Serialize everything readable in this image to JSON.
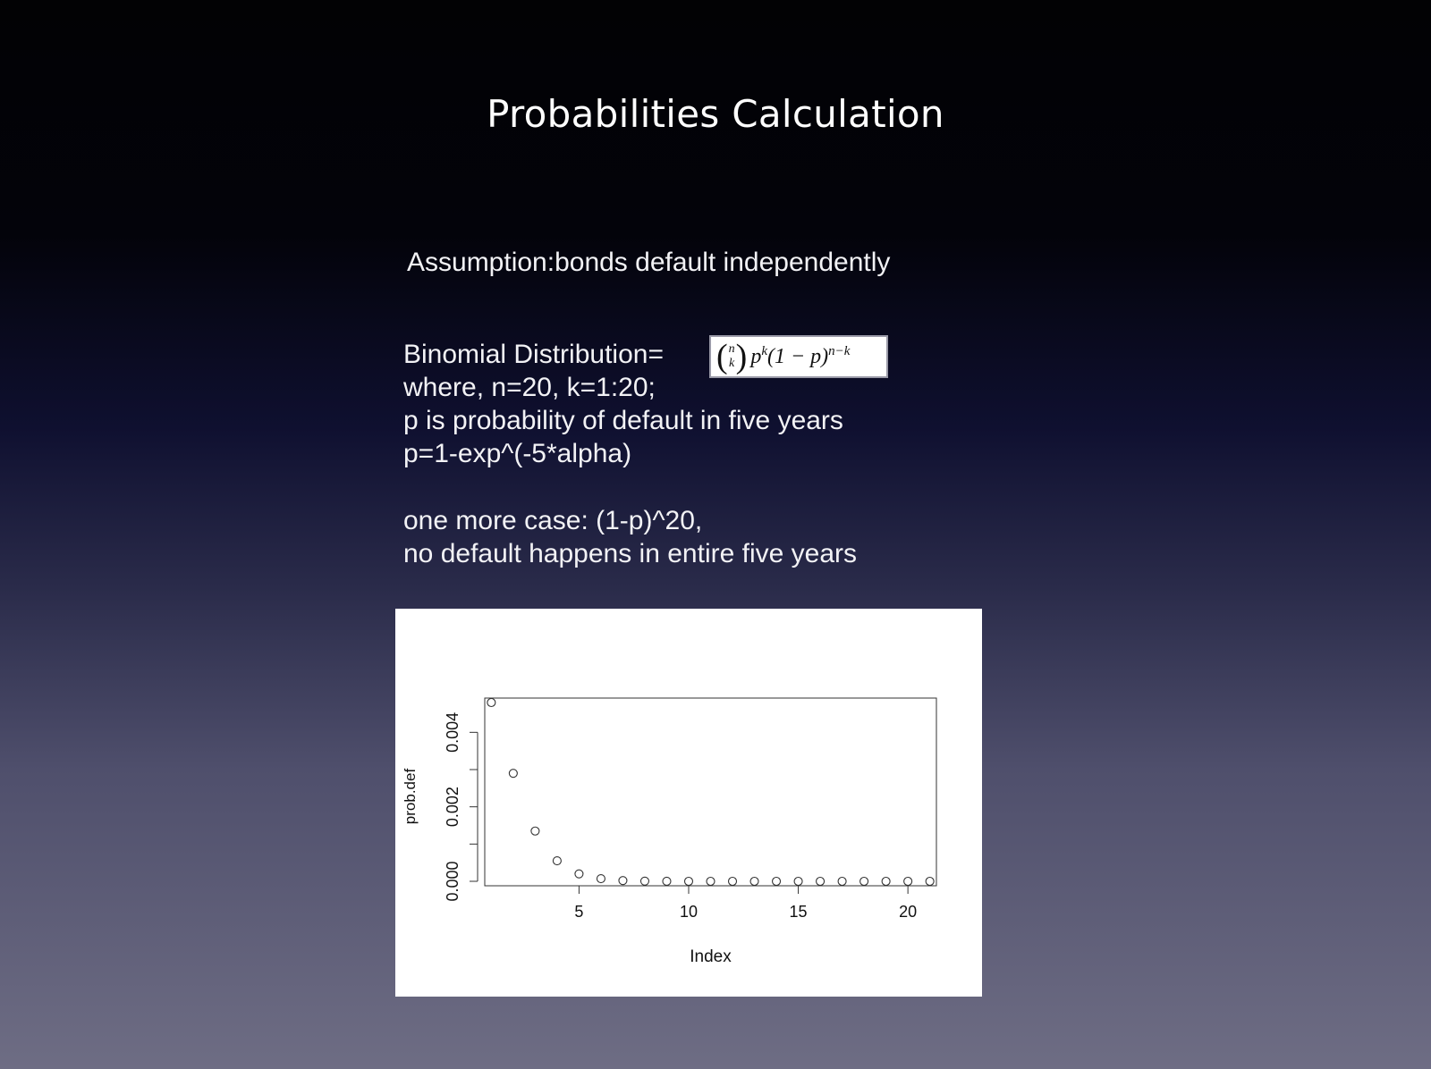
{
  "slide": {
    "title": "Probabilities Calculation",
    "assumption": "Assumption:bonds default independently",
    "binomial_label": "Binomial Distribution=",
    "where_line": "where, n=20, k=1:20;",
    "p_definition": "p is probability of default in five years",
    "p_formula": "p=1-exp^(-5*alpha)",
    "extra_case": "one more case: (1-p)^20,",
    "extra_case_note": "no default happens in entire five years"
  },
  "formula": {
    "n": "n",
    "k": "k",
    "expression": "p",
    "exp_k": "k",
    "middle": "(1 − p)",
    "exp_nk": "n−k"
  },
  "chart_data": {
    "type": "scatter",
    "title": "",
    "xlabel": "Index",
    "ylabel": "prob.def",
    "x": [
      1,
      2,
      3,
      4,
      5,
      6,
      7,
      8,
      9,
      10,
      11,
      12,
      13,
      14,
      15,
      16,
      17,
      18,
      19,
      20,
      21
    ],
    "y": [
      0.0048,
      0.0029,
      0.00135,
      0.00055,
      0.0002,
      7e-05,
      2e-05,
      5e-06,
      1e-06,
      0,
      0,
      0,
      0,
      0,
      0,
      0,
      0,
      0,
      0,
      0,
      0
    ],
    "xlim": [
      1,
      21
    ],
    "ylim": [
      0,
      0.0048
    ],
    "xticks": [
      5,
      10,
      15,
      20
    ],
    "xtick_labels": [
      "5",
      "10",
      "15",
      "20"
    ],
    "yticks": [
      0,
      0.002,
      0.004
    ],
    "ytick_labels": [
      "0.000",
      "0.002",
      "0.004"
    ],
    "grid": false,
    "marker": "open-circle",
    "background": "#ffffff"
  }
}
